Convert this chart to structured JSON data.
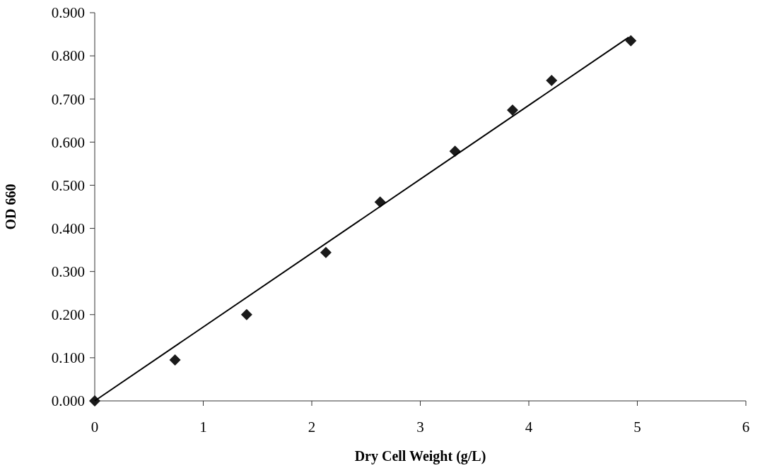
{
  "chart_data": {
    "type": "scatter",
    "xlabel": "Dry Cell Weight (g/L)",
    "ylabel": "OD 660",
    "xlim": [
      0,
      6
    ],
    "xticks": [
      0,
      1,
      2,
      3,
      4,
      5,
      6
    ],
    "ylim": [
      0,
      0.9
    ],
    "yticks": [
      {
        "value": 0,
        "label": "0.000"
      },
      {
        "value": 0.1,
        "label": "0.100"
      },
      {
        "value": 0.2,
        "label": "0.200"
      },
      {
        "value": 0.3,
        "label": "0.300"
      },
      {
        "value": 0.4,
        "label": "0.400"
      },
      {
        "value": 0.5,
        "label": "0.500"
      },
      {
        "value": 0.6,
        "label": "0.600"
      },
      {
        "value": 0.7,
        "label": "0.700"
      },
      {
        "value": 0.8,
        "label": "0.800"
      },
      {
        "value": 0.9,
        "label": "0.900"
      }
    ],
    "grid": false,
    "series": [
      {
        "marker": "diamond",
        "color": "#1a1a1a",
        "x": [
          0,
          0.74,
          1.4,
          2.13,
          2.63,
          3.32,
          3.85,
          4.21,
          4.94
        ],
        "values": [
          0,
          0.095,
          0.2,
          0.344,
          0.461,
          0.579,
          0.674,
          0.743,
          0.835
        ]
      },
      {
        "type": "line",
        "color": "#000000",
        "x": [
          0,
          4.92
        ],
        "values": [
          0,
          0.843
        ]
      }
    ]
  }
}
